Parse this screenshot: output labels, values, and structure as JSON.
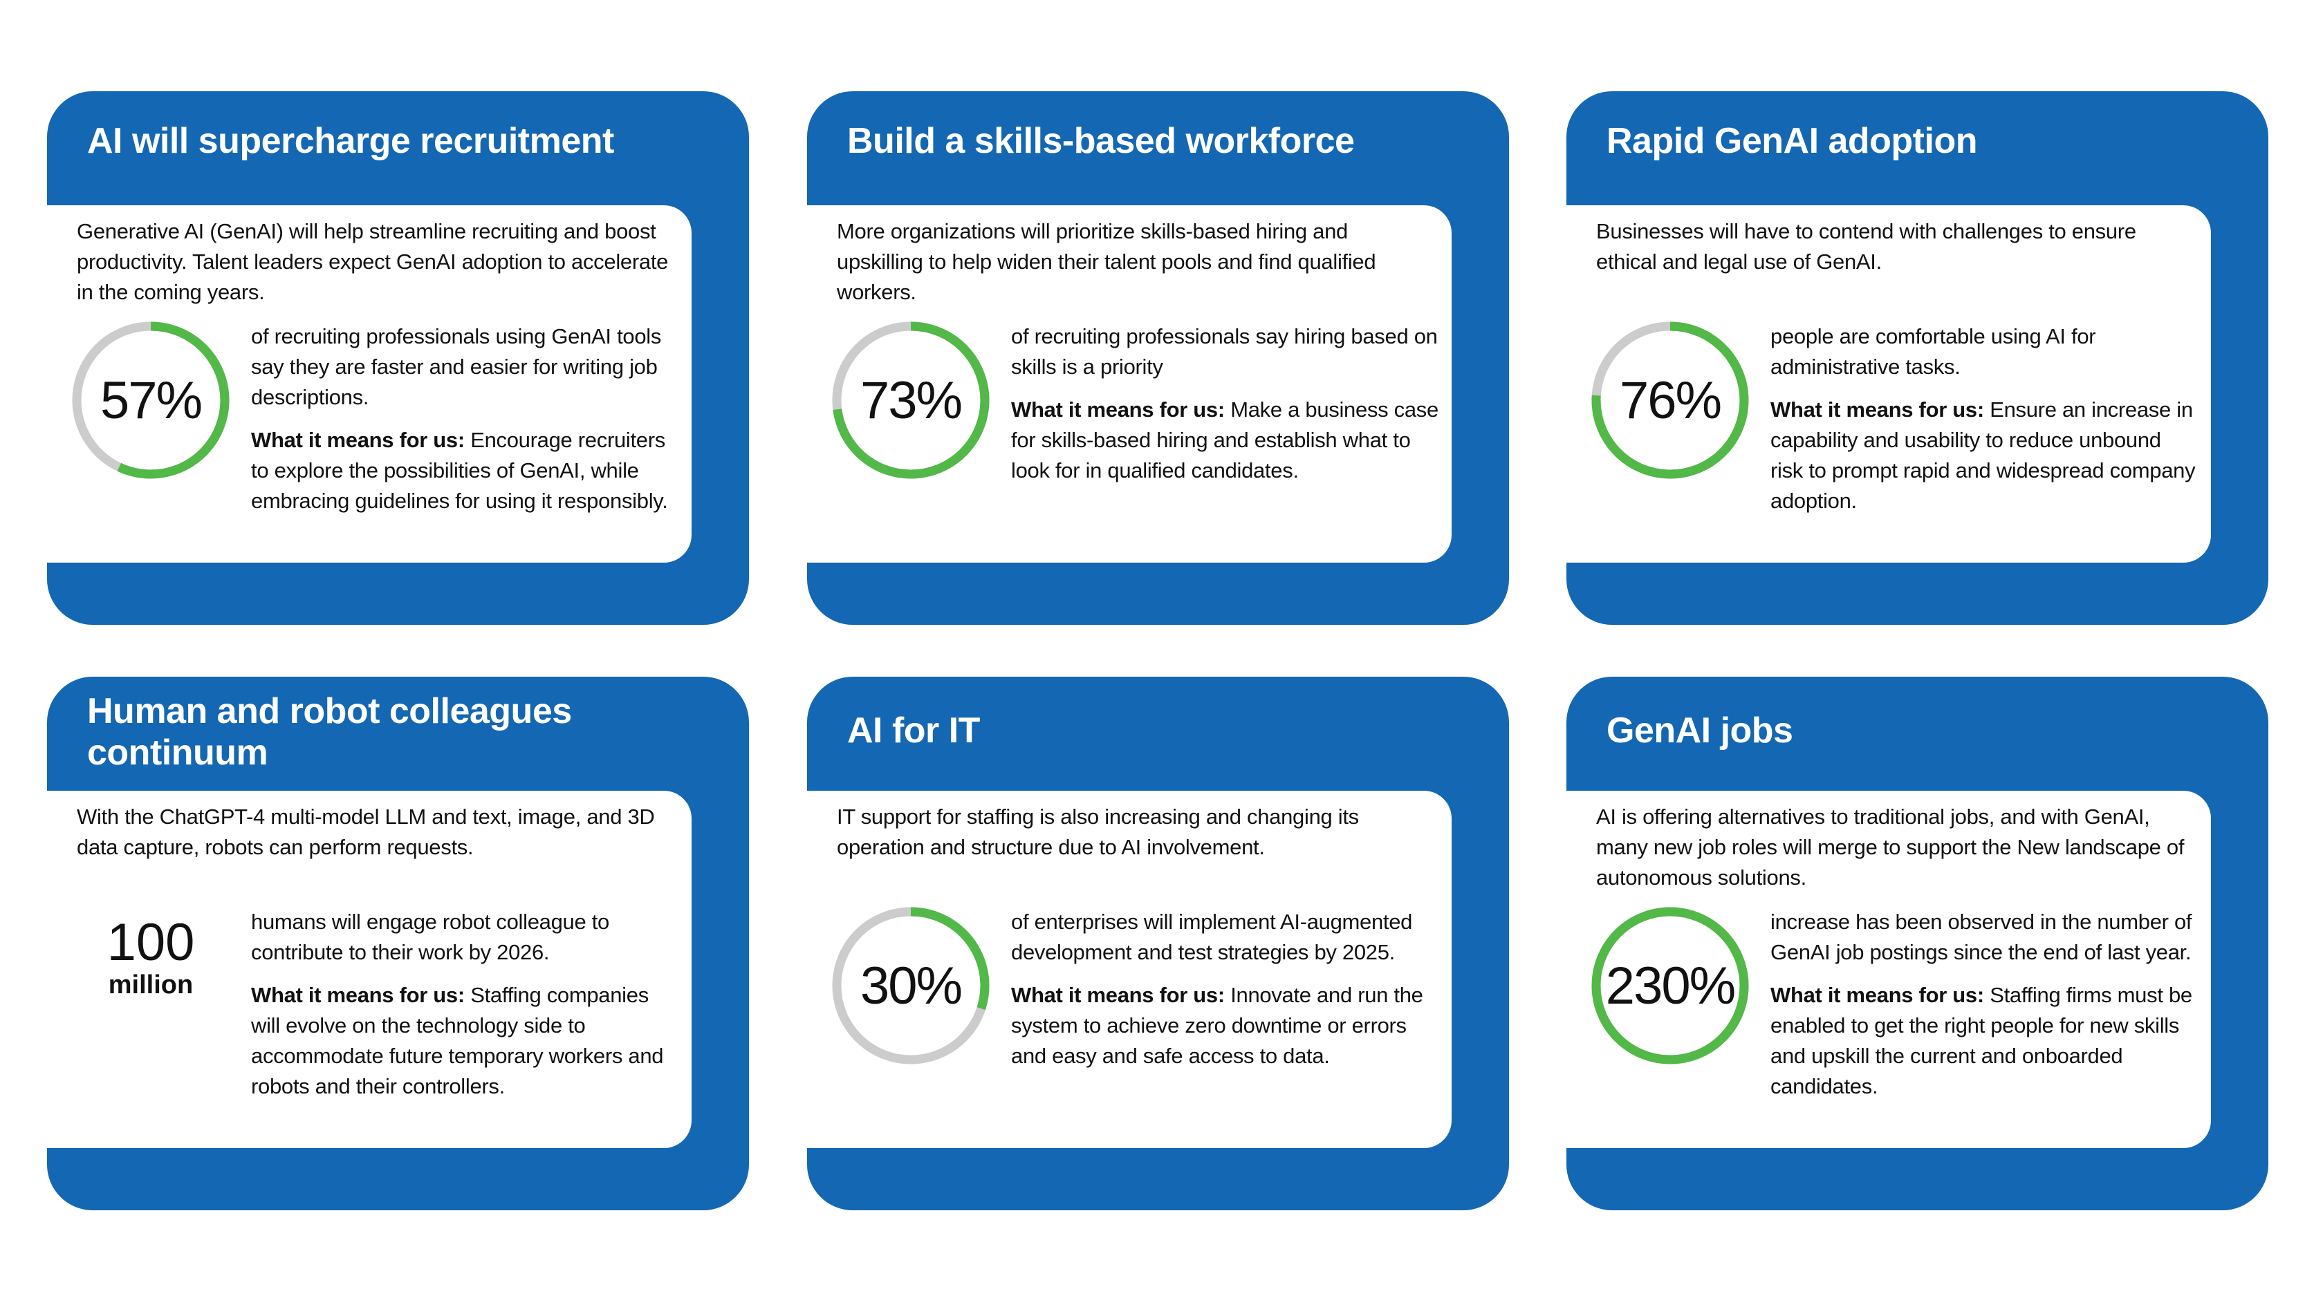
{
  "colors": {
    "blue": "#1467b2",
    "green": "#52b848",
    "gray": "#cccccc"
  },
  "cards": [
    {
      "title": "AI will supercharge recruitment",
      "intro": "Generative AI (GenAI) will help streamline recruiting and boost productivity. Talent leaders expect GenAI adoption to accelerate in the coming years.",
      "stat": "57%",
      "percent": 57,
      "stat_text": "of recruiting professionals using GenAI tools say they are faster and easier for writing job descriptions.",
      "means_label": "What it means for us:",
      "means_text": " Encourage recruiters to explore the possibilities of GenAI, while embracing guidelines for using it responsibly."
    },
    {
      "title": "Build a skills-based workforce",
      "intro": "More organizations will prioritize skills-based hiring and upskilling to help widen their talent pools and find qualified workers.",
      "stat": "73%",
      "percent": 73,
      "stat_text": "of recruiting professionals say hiring based on skills is a priority",
      "means_label": "What it means for us:",
      "means_text": " Make a business case for skills-based hiring and establish what to look for in qualified candidates."
    },
    {
      "title": "Rapid GenAI adoption",
      "intro": "Businesses will have to contend with challenges to ensure ethical and legal use of GenAI.",
      "stat": "76%",
      "percent": 76,
      "stat_text": "people are comfortable using AI for administrative tasks.",
      "means_label": "What it means for us:",
      "means_text": " Ensure an increase in capability and usability to reduce unbound risk to prompt rapid and widespread company adoption."
    },
    {
      "title": "Human and robot colleagues continuum",
      "intro": "With the ChatGPT-4 multi-model LLM and text, image, and 3D data capture, robots can perform requests.",
      "stat": "100",
      "stat_unit": "million",
      "stat_text": "humans will engage robot colleague to contribute to their work by 2026.",
      "means_label": "What it means for us:",
      "means_text": " Staffing companies will evolve on the technology side to accommodate future temporary workers and robots and their controllers."
    },
    {
      "title": "AI for IT",
      "intro": "IT support for staffing is also increasing and changing its operation and structure due to AI involvement.",
      "stat": "30%",
      "percent": 30,
      "stat_text": "of enterprises will implement AI-augmented development and test strategies by 2025.",
      "means_label": "What it means for us:",
      "means_text": " Innovate and run the system to achieve zero downtime or errors and easy and safe access to data."
    },
    {
      "title": "GenAI jobs",
      "intro": "AI is offering alternatives to traditional jobs, and with GenAI, many new job roles will merge to support the New landscape of autonomous solutions.",
      "stat": "230%",
      "percent": 100,
      "stat_text": "increase has been observed in the number of GenAI job postings since the end of last year.",
      "means_label": "What it means for us:",
      "means_text": " Staffing firms must be enabled to get the right people for new skills and upskill the current and onboarded candidates."
    }
  ]
}
